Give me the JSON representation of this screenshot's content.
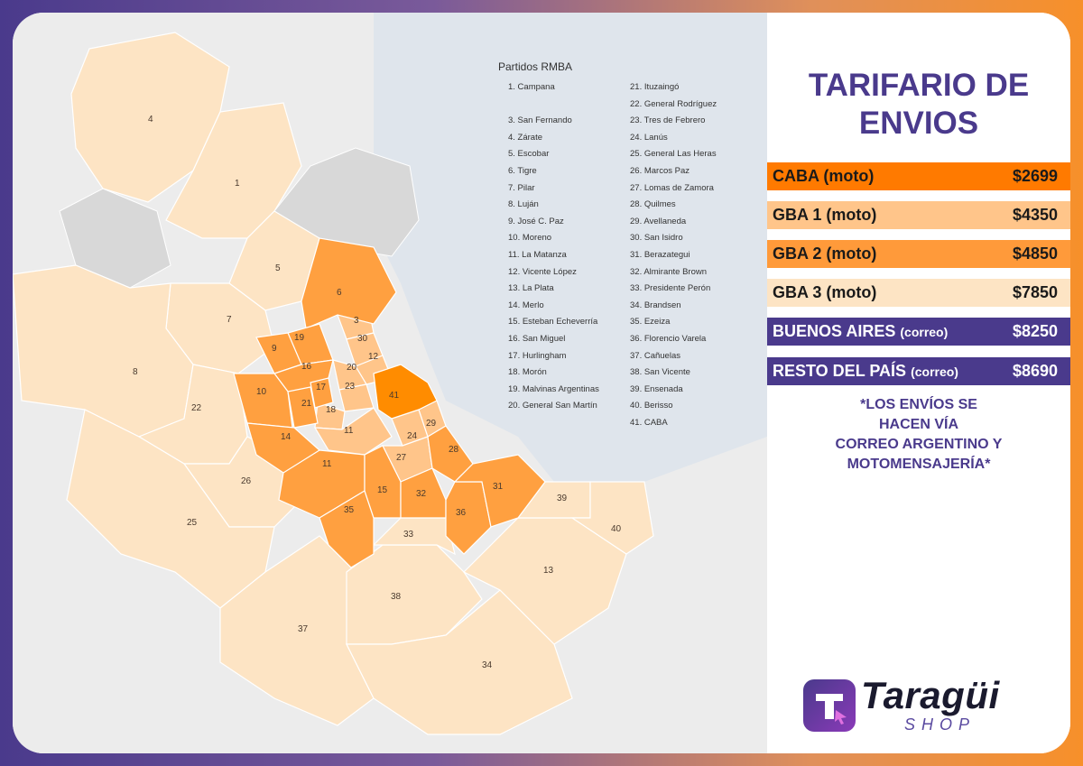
{
  "map": {
    "legend_title": "Partidos RMBA",
    "legend_left": [
      "1. Campana",
      "",
      "3. San Fernando",
      "4. Zárate",
      "5. Escobar",
      "6. Tigre",
      "7. Pilar",
      "8. Luján",
      "9. José C. Paz",
      "10. Moreno",
      "11. La Matanza",
      "12. Vicente López",
      "13. La Plata",
      "14. Merlo",
      "15. Esteban Echeverría",
      "16. San Miguel",
      "17. Hurlingham",
      "18. Morón",
      "19. Malvinas Argentinas",
      "20. General San Martín"
    ],
    "legend_right": [
      "21. Ituzaingó",
      "22. General Rodríguez",
      "23. Tres de Febrero",
      "24. Lanús",
      "25. General Las Heras",
      "26. Marcos Paz",
      "27. Lomas de Zamora",
      "28. Quilmes",
      "29. Avellaneda",
      "30. San Isidro",
      "31. Berazategui",
      "32. Almirante Brown",
      "33. Presidente Perón",
      "34. Brandsen",
      "35. Ezeiza",
      "36. Florencio Varela",
      "37. Cañuelas",
      "38. San Vicente",
      "39. Ensenada",
      "40. Berisso",
      "41. CABA"
    ],
    "region_numbers": {
      "r4": "4",
      "r1": "1",
      "r5": "5",
      "r6": "6",
      "r7": "7",
      "r8": "8",
      "r3": "3",
      "r30": "30",
      "r19": "19",
      "r9": "9",
      "r16": "16",
      "r12": "12",
      "r20": "20",
      "r23": "23",
      "r41": "41",
      "r10": "10",
      "r17": "17",
      "r21": "21",
      "r18": "18",
      "r22": "22",
      "r11a": "11",
      "r11b": "11",
      "r14": "14",
      "r29": "29",
      "r24": "24",
      "r27": "27",
      "r28": "28",
      "r26": "26",
      "r15": "15",
      "r32": "32",
      "r31": "31",
      "r35": "35",
      "r36": "36",
      "r39": "39",
      "r40": "40",
      "r25": "25",
      "r33": "33",
      "r13": "13",
      "r38": "38",
      "r37": "37",
      "r34": "34"
    },
    "colors": {
      "caba": "#ff8c00",
      "gba1": "#ffc58a",
      "gba2": "#ffa040",
      "gba3": "#fde4c4",
      "water": "#dfe5ec",
      "neutral": "#d8d8d8",
      "background": "#ececec"
    }
  },
  "panel": {
    "title_line1": "TARIFARIO DE",
    "title_line2": "ENVIOS",
    "rates": [
      {
        "label": "CABA (moto)",
        "price": "$2699",
        "bg": "#ff7a00",
        "color": "#1a1a1a"
      },
      {
        "label": "GBA 1 (moto)",
        "price": "$4350",
        "bg": "#ffc58a",
        "color": "#1a1a1a"
      },
      {
        "label": "GBA 2 (moto)",
        "price": "$4850",
        "bg": "#ff9a3a",
        "color": "#1a1a1a"
      },
      {
        "label": "GBA 3 (moto)",
        "price": "$7850",
        "bg": "#fde4c4",
        "color": "#1a1a1a"
      },
      {
        "label": "BUENOS AIRES",
        "label_small": "(correo)",
        "price": "$8250",
        "bg": "#4a3a8c",
        "color": "#ffffff"
      },
      {
        "label": "RESTO DEL PAÍS",
        "label_small": "(correo)",
        "price": "$8690",
        "bg": "#4a3a8c",
        "color": "#ffffff"
      }
    ],
    "note_lines": [
      "*LOS ENVÍOS SE",
      "HACEN VÍA",
      "CORREO ARGENTINO Y",
      "MOTOMENSAJERÍA*"
    ],
    "logo_text": "Taragüi",
    "logo_sub": "SHOP"
  }
}
